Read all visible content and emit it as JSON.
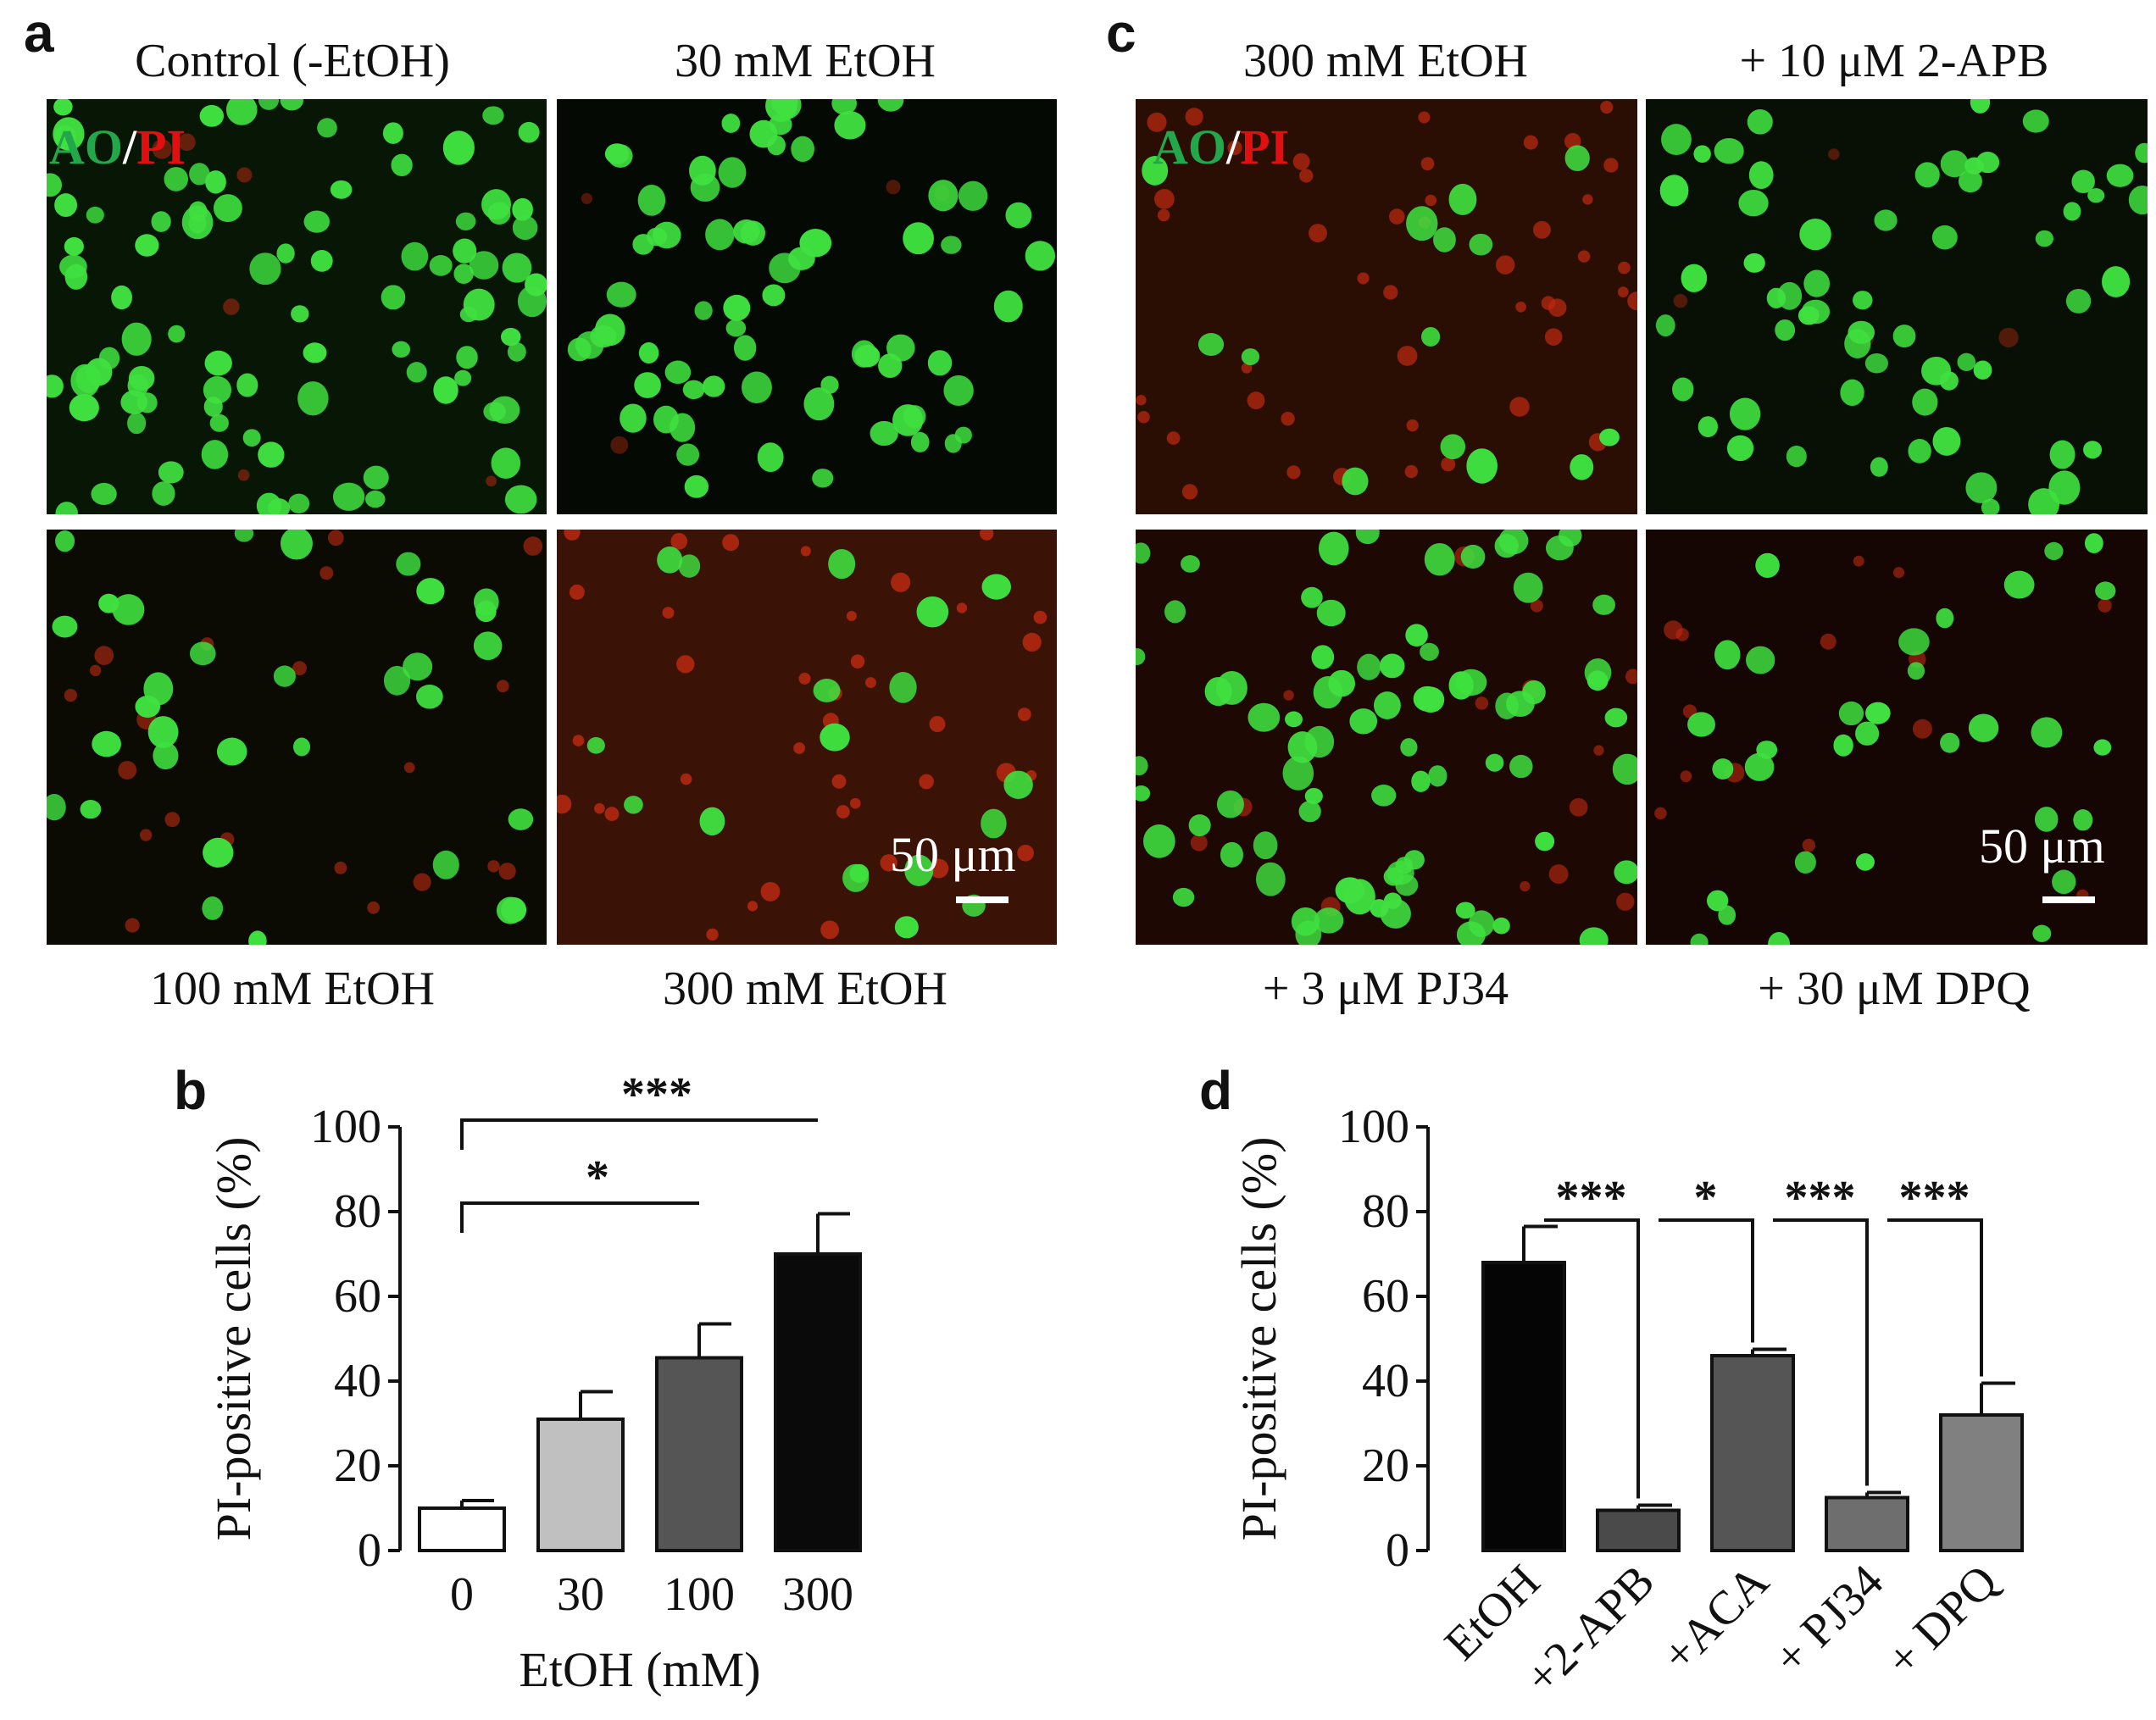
{
  "panel_a": {
    "label": "a",
    "titles": [
      "Control (-EtOH)",
      "30 mM EtOH",
      "100 mM EtOH",
      "300 mM EtOH"
    ],
    "stain_ao": "AO",
    "stain_sep": "/",
    "stain_pi": "PI",
    "scale": "50 μm"
  },
  "panel_c": {
    "label": "c",
    "titles": [
      "300 mM EtOH",
      "+ 10 μM 2-APB",
      "+ 3 μM PJ34",
      "+ 30 μM DPQ"
    ],
    "stain_ao": "AO",
    "stain_sep": "/",
    "stain_pi": "PI",
    "scale": "50 μm"
  },
  "colors": {
    "ao": "#22a84a",
    "pi": "#e01010",
    "cell": "#3fe03f",
    "pi_cell": "#c02a10"
  },
  "chart_data": [
    {
      "panel": "b",
      "type": "bar",
      "categories": [
        "0",
        "30",
        "100",
        "300"
      ],
      "values": [
        10,
        31,
        45.5,
        70
      ],
      "errors": [
        1.8,
        6.5,
        8,
        9.5
      ],
      "bar_colors": [
        "#ffffff",
        "#c0c0c0",
        "#555555",
        "#0a0a0a"
      ],
      "xlabel": "EtOH (mM)",
      "ylabel": "PI-positive cells (%)",
      "ylim": [
        0,
        100
      ],
      "yticks": [
        0,
        20,
        40,
        60,
        80,
        100
      ],
      "significance": [
        {
          "from": 0,
          "to": 2,
          "label": "*"
        },
        {
          "from": 0,
          "to": 3,
          "label": "***"
        }
      ]
    },
    {
      "panel": "d",
      "type": "bar",
      "categories": [
        "EtOH",
        "+2-APB",
        "+ACA",
        "+ PJ34",
        "+ DPQ"
      ],
      "values": [
        68,
        9.5,
        46,
        12.5,
        32
      ],
      "errors": [
        8.5,
        1.2,
        1.5,
        1.2,
        7.5
      ],
      "bar_colors": [
        "#050505",
        "#4a4a4a",
        "#555555",
        "#6e6e6e",
        "#808080"
      ],
      "ylabel": "PI-positive cells (%)",
      "ylim": [
        0,
        100
      ],
      "yticks": [
        0,
        20,
        40,
        60,
        80,
        100
      ],
      "significance": [
        {
          "from": 0,
          "to": 1,
          "label": "***"
        },
        {
          "from": 1,
          "to": 2,
          "label": "*"
        },
        {
          "from": 2,
          "to": 3,
          "label": "***"
        },
        {
          "from": 3,
          "to": 4,
          "label": "***"
        }
      ]
    }
  ]
}
